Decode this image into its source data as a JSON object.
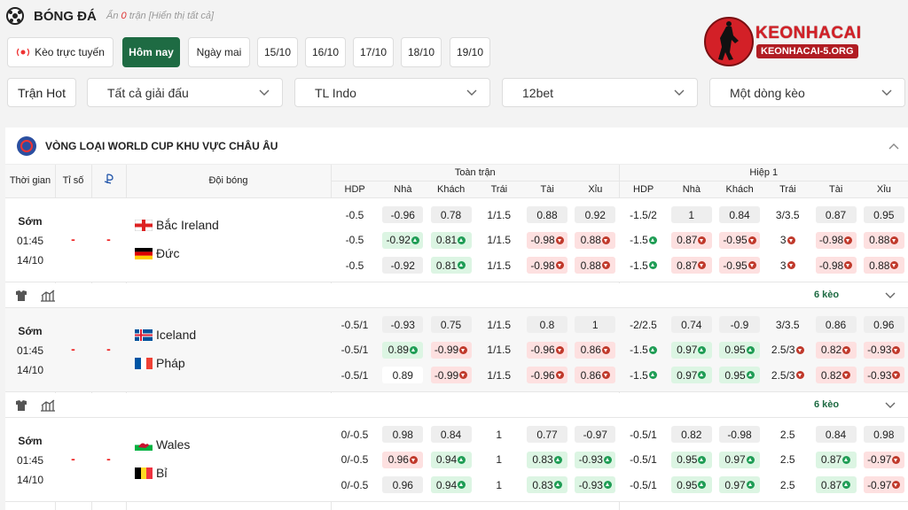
{
  "header": {
    "title": "BÓNG ĐÁ",
    "hidden_prefix": "Ẩn",
    "hidden_count": "0",
    "hidden_suffix": "trận [Hiển thị tất cả]"
  },
  "logo": {
    "name": "KEONHACAI",
    "domain": "KEONHACAI-5.ORG"
  },
  "tabs": {
    "items": [
      "Kèo trực tuyến",
      "Hôm nay",
      "Ngày mai",
      "15/10",
      "16/10",
      "17/10",
      "18/10",
      "19/10"
    ],
    "active": 1
  },
  "filters": {
    "hot": "Trận Hot",
    "dropdowns": [
      "Tất cả giải đấu",
      "TL Indo",
      "12bet",
      "Một dòng kèo"
    ]
  },
  "league": "VÒNG LOẠI WORLD CUP KHU VỰC CHÂU ÂU",
  "columns": {
    "time": "Thời gian",
    "score": "Tỉ số",
    "team": "Đội bóng",
    "groups": [
      "Toàn trận",
      "Hiệp 1"
    ],
    "odds": [
      "HDP",
      "Nhà",
      "Khách",
      "Trái",
      "Tài",
      "Xỉu",
      "HDP",
      "Nhà",
      "Khách",
      "Trái",
      "Tài",
      "Xỉu"
    ]
  },
  "matches": [
    {
      "status": "Sớm",
      "time": "01:45",
      "date": "14/10",
      "score_home": "-",
      "score_away": "-",
      "home": "Bắc Ireland",
      "away": "Đức",
      "more": "6 kèo",
      "odds": [
        [
          "-0.5",
          "-0.96",
          "0.78",
          "1/1.5",
          "0.88",
          "0.92",
          "-1.5/2",
          "1",
          "0.84",
          "3/3.5",
          "0.87",
          "0.95"
        ],
        [
          "-0.5",
          "-0.92",
          "0.81",
          "1/1.5",
          "-0.98",
          "0.88",
          "-1.5",
          "0.87",
          "-0.95",
          "3",
          "-0.98",
          "0.88"
        ],
        [
          "-0.5",
          "-0.92",
          "0.81",
          "1/1.5",
          "-0.98",
          "0.88",
          "-1.5",
          "0.87",
          "-0.95",
          "3",
          "-0.98",
          "0.88"
        ]
      ],
      "trends": [
        [
          null,
          null,
          null,
          null,
          null,
          null,
          null,
          null,
          null,
          null,
          null,
          null
        ],
        [
          null,
          "up",
          "up",
          null,
          "down",
          "down",
          "up",
          "down",
          "down",
          "down",
          "down",
          "down"
        ],
        [
          null,
          null,
          "up",
          null,
          "down",
          "down",
          "up",
          "down",
          "down",
          "down",
          "down",
          "down"
        ]
      ]
    },
    {
      "status": "Sớm",
      "time": "01:45",
      "date": "14/10",
      "score_home": "-",
      "score_away": "-",
      "home": "Iceland",
      "away": "Pháp",
      "more": "6 kèo",
      "odds": [
        [
          "-0.5/1",
          "-0.93",
          "0.75",
          "1/1.5",
          "0.8",
          "1",
          "-2/2.5",
          "0.74",
          "-0.9",
          "3/3.5",
          "0.86",
          "0.96"
        ],
        [
          "-0.5/1",
          "0.89",
          "-0.99",
          "1/1.5",
          "-0.96",
          "0.86",
          "-1.5",
          "0.97",
          "0.95",
          "2.5/3",
          "0.82",
          "-0.93"
        ],
        [
          "-0.5/1",
          "0.89",
          "-0.99",
          "1/1.5",
          "-0.96",
          "0.86",
          "-1.5",
          "0.97",
          "0.95",
          "2.5/3",
          "0.82",
          "-0.93"
        ]
      ],
      "trends": [
        [
          null,
          null,
          null,
          null,
          null,
          null,
          null,
          null,
          null,
          null,
          null,
          null
        ],
        [
          null,
          "up",
          "down",
          null,
          "down",
          "down",
          "up",
          "up",
          "up",
          "down",
          "down",
          "down"
        ],
        [
          null,
          null,
          "down",
          null,
          "down",
          "down",
          "up",
          "up",
          "up",
          "down",
          "down",
          "down"
        ]
      ]
    },
    {
      "status": "Sớm",
      "time": "01:45",
      "date": "14/10",
      "score_home": "-",
      "score_away": "-",
      "home": "Wales",
      "away": "Bỉ",
      "odds": [
        [
          "0/-0.5",
          "0.98",
          "0.84",
          "1",
          "0.77",
          "-0.97",
          "-0.5/1",
          "0.82",
          "-0.98",
          "2.5",
          "0.84",
          "0.98"
        ],
        [
          "0/-0.5",
          "0.96",
          "0.94",
          "1",
          "0.83",
          "-0.93",
          "-0.5/1",
          "0.95",
          "0.97",
          "2.5",
          "0.87",
          "-0.97"
        ],
        [
          "0/-0.5",
          "0.96",
          "0.94",
          "1",
          "0.83",
          "-0.93",
          "-0.5/1",
          "0.95",
          "0.97",
          "2.5",
          "0.87",
          "-0.97"
        ]
      ],
      "trends": [
        [
          null,
          null,
          null,
          null,
          null,
          null,
          null,
          null,
          null,
          null,
          null,
          null
        ],
        [
          null,
          "down",
          "up",
          null,
          "up",
          "up",
          null,
          "up",
          "up",
          null,
          "up",
          "down"
        ],
        [
          null,
          null,
          "up",
          null,
          "up",
          "up",
          null,
          "up",
          "up",
          null,
          "up",
          "down"
        ]
      ]
    }
  ]
}
